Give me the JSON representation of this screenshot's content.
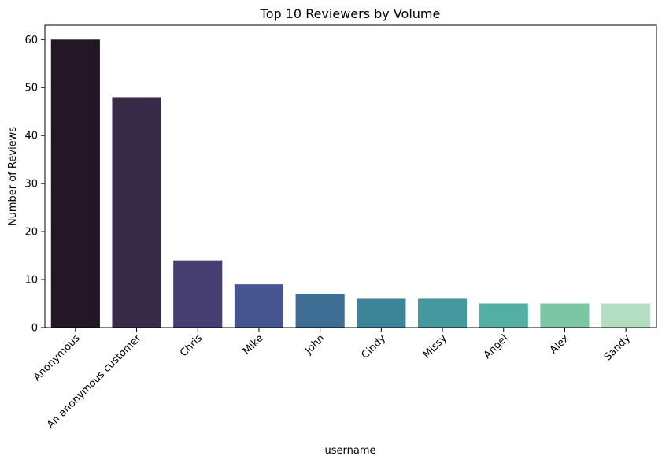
{
  "chart_data": {
    "type": "bar",
    "title": "Top 10 Reviewers by Volume",
    "xlabel": "username",
    "ylabel": "Number of Reviews",
    "categories": [
      "Anonymous",
      "An anonymous customer",
      "Chris",
      "Mike",
      "John",
      "Cindy",
      "Missy",
      "Angel",
      "Alex",
      "Sandy"
    ],
    "values": [
      60,
      48,
      14,
      9,
      7,
      6,
      6,
      5,
      5,
      5
    ],
    "ylim": [
      0,
      63
    ],
    "yticks": [
      0,
      10,
      20,
      30,
      40,
      50,
      60
    ],
    "colors": [
      "#231726",
      "#372b48",
      "#463e71",
      "#46558f",
      "#3f6e95",
      "#3d8498",
      "#45999e",
      "#53afa3",
      "#7bc6a5",
      "#b3dec1"
    ],
    "grid": false,
    "legend": "none"
  }
}
